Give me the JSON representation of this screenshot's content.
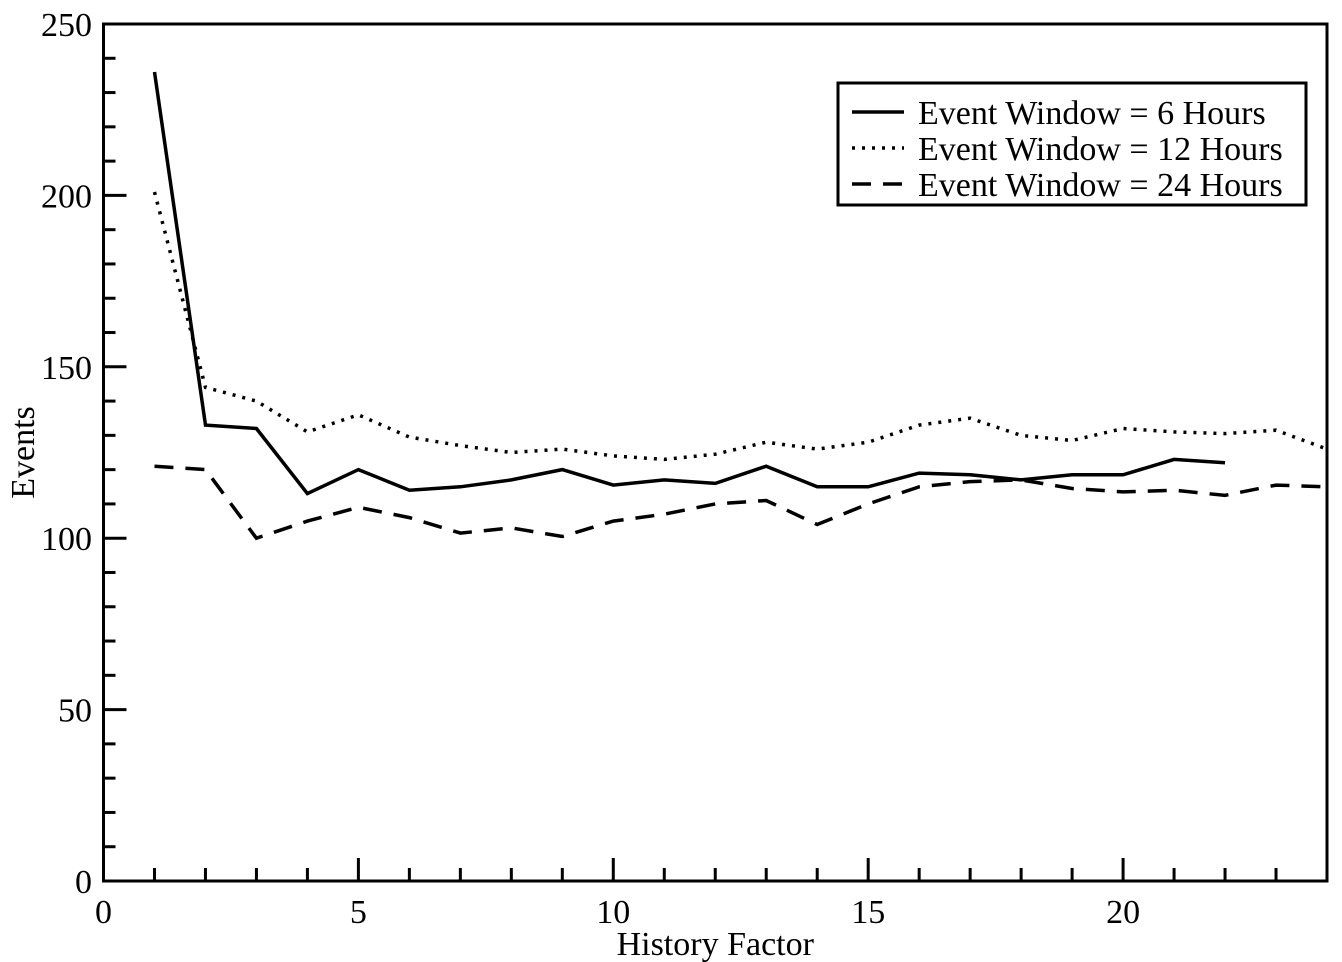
{
  "chart_data": {
    "type": "line",
    "title": "",
    "xlabel": "History Factor",
    "ylabel": "Events",
    "xlim": [
      0,
      24
    ],
    "ylim": [
      0,
      250
    ],
    "x_major_ticks": [
      0,
      5,
      10,
      15,
      20
    ],
    "x_minor_step": 1,
    "y_major_ticks": [
      0,
      50,
      100,
      150,
      200,
      250
    ],
    "y_minor_step": 10,
    "grid": false,
    "legend_position": "top-right",
    "line_color": "#000000",
    "background_color": "#ffffff",
    "series": [
      {
        "name": "Event Window = 6 Hours",
        "style": "solid",
        "x": [
          1,
          2,
          3,
          4,
          5,
          6,
          7,
          8,
          9,
          10,
          11,
          12,
          13,
          14,
          15,
          16,
          17,
          18,
          19,
          20,
          21,
          22
        ],
        "values": [
          236,
          133,
          132,
          113,
          120,
          114,
          115,
          117,
          120,
          115.5,
          117,
          116,
          121,
          115,
          115,
          119,
          118.5,
          117,
          118.5,
          118.5,
          123,
          122
        ]
      },
      {
        "name": "Event Window = 12 Hours",
        "style": "dotted",
        "x": [
          1,
          2,
          3,
          4,
          5,
          6,
          7,
          8,
          9,
          10,
          11,
          12,
          13,
          14,
          15,
          16,
          17,
          18,
          19,
          20,
          21,
          22,
          23,
          24
        ],
        "values": [
          201,
          144,
          140,
          131,
          136,
          129.5,
          127,
          125,
          126,
          124,
          123,
          124.5,
          128,
          126,
          128,
          133,
          135,
          130,
          128.5,
          132,
          131,
          130.5,
          131.5,
          126
        ]
      },
      {
        "name": "Event Window = 24 Hours",
        "style": "dashed",
        "x": [
          1,
          2,
          3,
          4,
          5,
          6,
          7,
          8,
          9,
          10,
          11,
          12,
          13,
          14,
          15,
          16,
          17,
          18,
          19,
          20,
          21,
          22,
          23,
          24
        ],
        "values": [
          121,
          120,
          100,
          105,
          109,
          106,
          101.5,
          103,
          100.5,
          105,
          107,
          110,
          111,
          104,
          110,
          115,
          116.5,
          117,
          114.5,
          113.5,
          114,
          112.5,
          115.5,
          115
        ]
      }
    ]
  }
}
